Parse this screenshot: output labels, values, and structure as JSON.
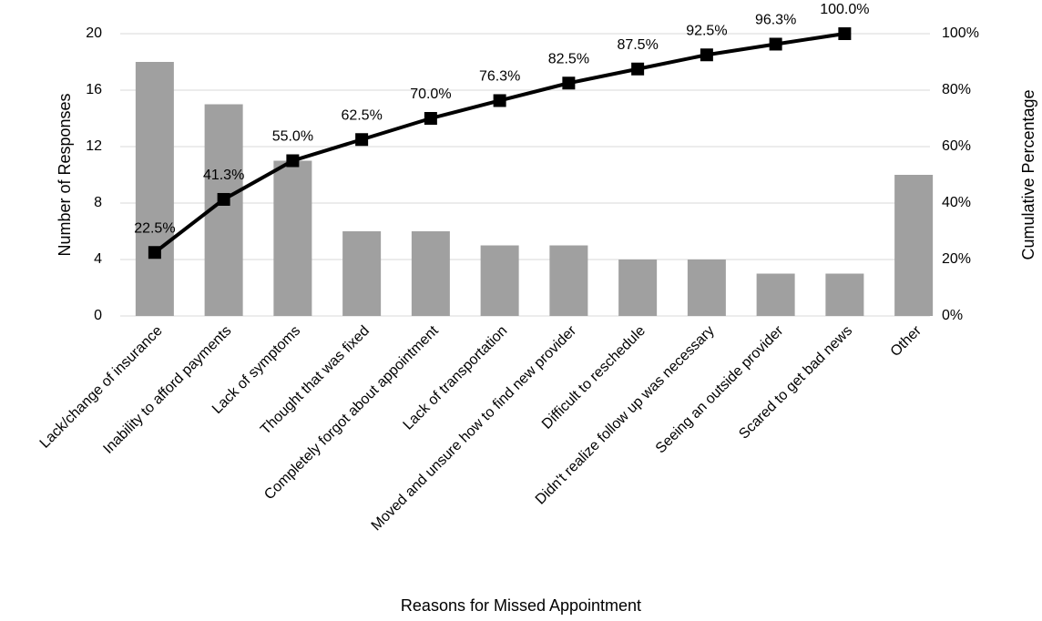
{
  "chart_data": {
    "type": "pareto",
    "x_label": "Reasons for Missed Appointment",
    "y_label": "Number of Responses",
    "y2_label": "Cumulative Percentage",
    "categories": [
      "Lack/change of insurance",
      "Inability to afford payments",
      "Lack of symptoms",
      "Thought that was fixed",
      "Completely forgot about appointment",
      "Lack of transportation",
      "Moved and unsure how to find new provider",
      "Difficult to reschedule",
      "Didn't realize follow up was necessary",
      "Seeing an outside provider",
      "Scared to get bad news",
      "Other"
    ],
    "series": [
      {
        "type": "bar",
        "color": "#a0a0a0",
        "values": [
          18,
          15,
          11,
          6,
          6,
          5,
          5,
          4,
          4,
          3,
          3,
          10
        ]
      },
      {
        "type": "line",
        "axis": "y2",
        "color": "#000000",
        "values": [
          22.5,
          41.3,
          55.0,
          62.5,
          70.0,
          76.3,
          82.5,
          87.5,
          92.5,
          96.3,
          100.0,
          null
        ],
        "value_labels": [
          "22.5%",
          "41.3%",
          "55.0%",
          "62.5%",
          "70.0%",
          "76.3%",
          "82.5%",
          "87.5%",
          "92.5%",
          "96.3%",
          "100.0%",
          null
        ]
      }
    ],
    "ylim": [
      0,
      20
    ],
    "yticks": [
      0,
      4,
      8,
      12,
      16,
      20
    ],
    "y2lim": [
      0,
      100
    ],
    "y2ticks": [
      {
        "value": 0,
        "label": "0%"
      },
      {
        "value": 20,
        "label": "20%"
      },
      {
        "value": 40,
        "label": "40%"
      },
      {
        "value": 60,
        "label": "60%"
      },
      {
        "value": 80,
        "label": "80%"
      },
      {
        "value": 100,
        "label": "100%"
      }
    ],
    "grid": true
  }
}
